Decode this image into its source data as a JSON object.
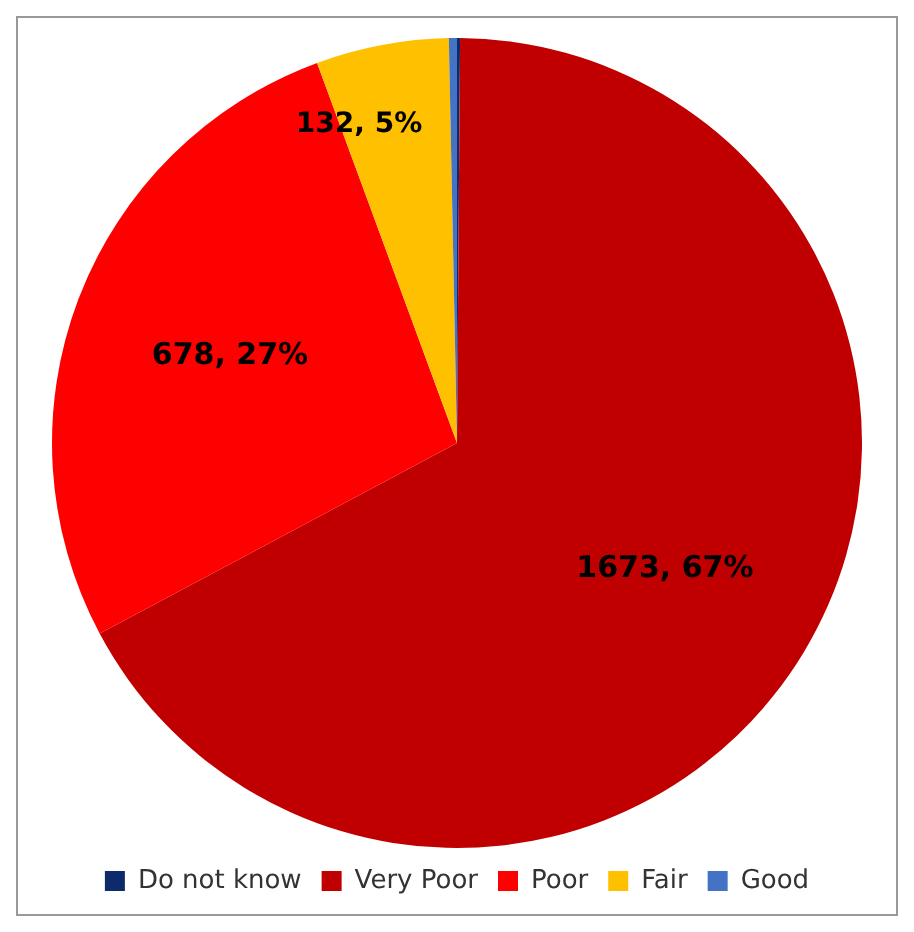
{
  "chart_data": {
    "type": "pie",
    "categories": [
      "Do not know",
      "Very Poor",
      "Poor",
      "Fair",
      "Good"
    ],
    "values": [
      3,
      1673,
      678,
      132,
      8
    ],
    "colors": [
      "#0d2a6b",
      "#c00000",
      "#ff0000",
      "#ffc000",
      "#4472c4"
    ],
    "value_labels": [
      null,
      "1673, 67%",
      "678, 27%",
      "132, 5%",
      null
    ],
    "legend": "bottom"
  }
}
